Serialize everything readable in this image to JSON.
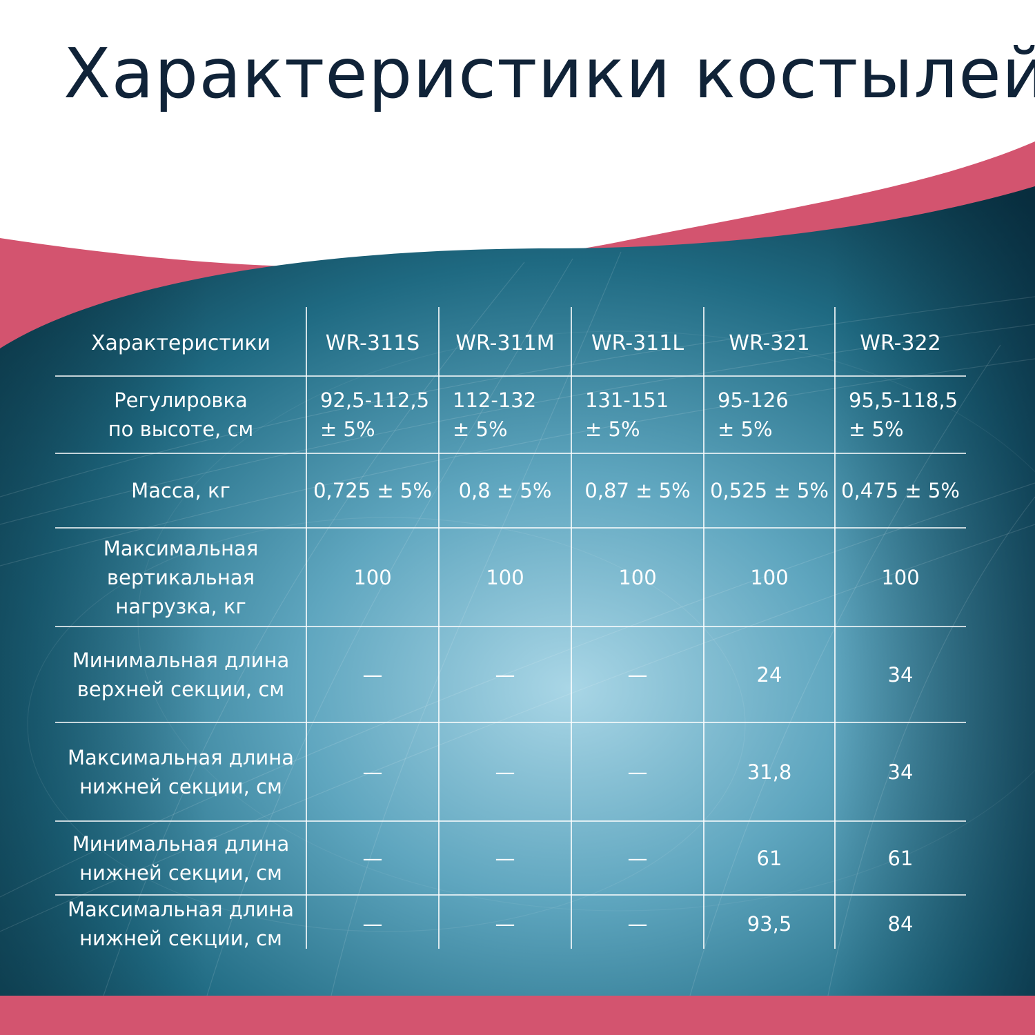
{
  "title": "Характеристики костылей",
  "colors": {
    "accent": "#d3546f",
    "title": "#102338",
    "panel_dark": "#0a3d4e",
    "panel_light": "#8fc6d9",
    "lines": "#ffffff"
  },
  "table": {
    "header": [
      "Характеристики",
      "WR-311S",
      "WR-311M",
      "WR-311L",
      "WR-321",
      "WR-322"
    ],
    "rows": [
      {
        "label": [
          "Регулировка",
          "по высоте, см"
        ],
        "cells": [
          [
            "92,5-112,5",
            "± 5%"
          ],
          [
            "112-132",
            "± 5%"
          ],
          [
            "131-151",
            "± 5%"
          ],
          [
            "95-126",
            "± 5%"
          ],
          [
            "95,5-118,5",
            "± 5%"
          ]
        ]
      },
      {
        "label": [
          "Масса, кг"
        ],
        "cells": [
          [
            "0,725 ± 5%"
          ],
          [
            "0,8 ± 5%"
          ],
          [
            "0,87 ± 5%"
          ],
          [
            "0,525 ± 5%"
          ],
          [
            "0,475 ± 5%"
          ]
        ]
      },
      {
        "label": [
          "Максимальная",
          "вертикальная",
          "нагрузка, кг"
        ],
        "cells": [
          [
            "100"
          ],
          [
            "100"
          ],
          [
            "100"
          ],
          [
            "100"
          ],
          [
            "100"
          ]
        ]
      },
      {
        "label": [
          "Минимальная длина",
          "верхней секции, см"
        ],
        "cells": [
          [
            "—"
          ],
          [
            "—"
          ],
          [
            "—"
          ],
          [
            "24"
          ],
          [
            "34"
          ]
        ]
      },
      {
        "label": [
          "Максимальная длина",
          "нижней секции, см"
        ],
        "cells": [
          [
            "—"
          ],
          [
            "—"
          ],
          [
            "—"
          ],
          [
            "31,8"
          ],
          [
            "34"
          ]
        ]
      },
      {
        "label": [
          "Минимальная длина",
          "нижней секции, см"
        ],
        "cells": [
          [
            "—"
          ],
          [
            "—"
          ],
          [
            "—"
          ],
          [
            "61"
          ],
          [
            "61"
          ]
        ]
      },
      {
        "label": [
          "Максимальная длина",
          "нижней секции, см"
        ],
        "cells": [
          [
            "—"
          ],
          [
            "—"
          ],
          [
            "—"
          ],
          [
            "93,5"
          ],
          [
            "84"
          ]
        ]
      }
    ]
  }
}
